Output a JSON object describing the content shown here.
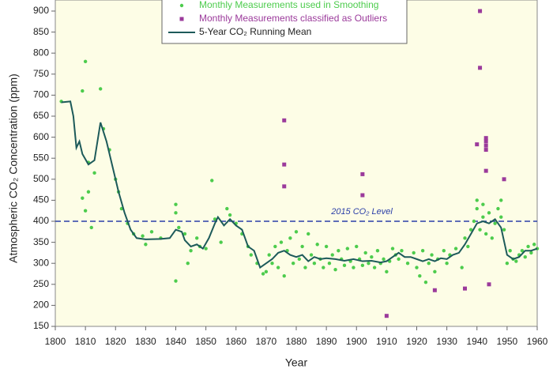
{
  "chart_data": {
    "type": "scatter",
    "x_label": "Year",
    "y_label": "Atmospheric CO₂ Concentration (ppm)",
    "xlim": [
      1800,
      1960
    ],
    "xticks": [
      1800,
      1810,
      1820,
      1830,
      1840,
      1850,
      1860,
      1870,
      1880,
      1890,
      1900,
      1910,
      1920,
      1930,
      1940,
      1950,
      1960
    ],
    "ylim": [
      150,
      900
    ],
    "yticks": [
      150,
      200,
      250,
      300,
      350,
      400,
      450,
      500,
      550,
      600,
      650,
      700,
      750,
      800,
      850,
      900
    ],
    "legend": "top",
    "background": "#fdfde6",
    "reference_line": {
      "value": 400,
      "label": "2015 CO₂ Level",
      "color": "#2b3fa8"
    },
    "series": [
      {
        "name": "Monthly Measurements used in Smoothing",
        "kind": "points",
        "color": "#4dcc4d",
        "x": [
          1802,
          1809,
          1810,
          1811,
          1810,
          1809,
          1812,
          1811,
          1813,
          1815,
          1816,
          1818,
          1820,
          1821,
          1822,
          1824,
          1826,
          1829,
          1830,
          1832,
          1835,
          1840,
          1840,
          1840,
          1841,
          1843,
          1844,
          1845,
          1847,
          1848,
          1850,
          1852,
          1853,
          1855,
          1857,
          1858,
          1860,
          1862,
          1864,
          1865,
          1867,
          1869,
          1870,
          1871,
          1872,
          1873,
          1874,
          1875,
          1876,
          1877,
          1878,
          1879,
          1880,
          1881,
          1882,
          1883,
          1884,
          1885,
          1886,
          1887,
          1888,
          1889,
          1890,
          1891,
          1892,
          1893,
          1894,
          1895,
          1896,
          1897,
          1898,
          1899,
          1900,
          1901,
          1902,
          1903,
          1904,
          1905,
          1906,
          1907,
          1908,
          1909,
          1910,
          1911,
          1912,
          1913,
          1914,
          1915,
          1917,
          1919,
          1920,
          1921,
          1922,
          1923,
          1924,
          1925,
          1926,
          1927,
          1929,
          1930,
          1931,
          1933,
          1935,
          1936,
          1937,
          1938,
          1939,
          1940,
          1940,
          1941,
          1942,
          1942,
          1943,
          1944,
          1945,
          1946,
          1947,
          1948,
          1948,
          1949,
          1950,
          1951,
          1952,
          1953,
          1954,
          1955,
          1956,
          1957,
          1958,
          1959,
          1960
        ],
        "values": [
          685,
          710,
          780,
          540,
          425,
          455,
          385,
          470,
          515,
          715,
          620,
          570,
          500,
          470,
          430,
          395,
          370,
          365,
          345,
          375,
          360,
          440,
          420,
          258,
          385,
          370,
          300,
          330,
          360,
          340,
          335,
          497,
          405,
          350,
          430,
          415,
          395,
          370,
          340,
          320,
          300,
          275,
          280,
          320,
          300,
          340,
          290,
          350,
          270,
          330,
          360,
          300,
          375,
          310,
          340,
          290,
          370,
          320,
          300,
          345,
          310,
          290,
          340,
          300,
          320,
          285,
          330,
          310,
          295,
          335,
          305,
          290,
          340,
          310,
          295,
          325,
          300,
          315,
          290,
          330,
          300,
          310,
          280,
          305,
          335,
          320,
          310,
          330,
          300,
          325,
          290,
          270,
          330,
          255,
          300,
          320,
          280,
          310,
          330,
          300,
          320,
          335,
          290,
          360,
          340,
          380,
          400,
          450,
          430,
          380,
          410,
          440,
          370,
          420,
          360,
          395,
          430,
          450,
          410,
          380,
          300,
          330,
          310,
          305,
          320,
          330,
          315,
          340,
          325,
          345,
          335
        ]
      },
      {
        "name": "Monthly Measurements classified as Outliers",
        "kind": "squares",
        "color": "#9b3a9b",
        "x": [
          1876,
          1876,
          1876,
          1902,
          1902,
          1910,
          1926,
          1936,
          1941,
          1941,
          1940,
          1943,
          1943,
          1943,
          1943,
          1943,
          1944,
          1949
        ],
        "values": [
          640,
          535,
          483,
          512,
          462,
          175,
          236,
          240,
          900,
          765,
          583,
          598,
          590,
          580,
          570,
          520,
          250,
          500
        ]
      },
      {
        "name": "5-Year CO₂ Running Mean",
        "kind": "line",
        "color": "#1d5a5a",
        "x": [
          1802,
          1805,
          1806,
          1807,
          1808,
          1809,
          1811,
          1813,
          1815,
          1817,
          1819,
          1821,
          1823,
          1825,
          1827,
          1830,
          1835,
          1838,
          1840,
          1842,
          1843,
          1845,
          1847,
          1849,
          1851,
          1853,
          1854,
          1856,
          1858,
          1860,
          1862,
          1864,
          1866,
          1868,
          1870,
          1872,
          1874,
          1876,
          1878,
          1880,
          1882,
          1884,
          1886,
          1888,
          1890,
          1893,
          1896,
          1899,
          1902,
          1905,
          1908,
          1910,
          1912,
          1914,
          1916,
          1918,
          1920,
          1922,
          1924,
          1926,
          1928,
          1930,
          1932,
          1934,
          1936,
          1938,
          1940,
          1942,
          1944,
          1946,
          1948,
          1950,
          1952,
          1954,
          1956,
          1958,
          1960
        ],
        "values": [
          683,
          685,
          650,
          575,
          590,
          560,
          535,
          545,
          635,
          590,
          530,
          470,
          420,
          380,
          360,
          357,
          358,
          360,
          380,
          375,
          355,
          340,
          345,
          335,
          360,
          395,
          410,
          390,
          405,
          390,
          380,
          340,
          330,
          290,
          300,
          310,
          325,
          330,
          320,
          315,
          320,
          305,
          315,
          310,
          312,
          310,
          306,
          310,
          305,
          306,
          302,
          305,
          315,
          325,
          315,
          315,
          310,
          305,
          310,
          305,
          312,
          310,
          320,
          325,
          345,
          370,
          395,
          400,
          395,
          405,
          385,
          320,
          310,
          315,
          330,
          330,
          335
        ]
      }
    ]
  }
}
